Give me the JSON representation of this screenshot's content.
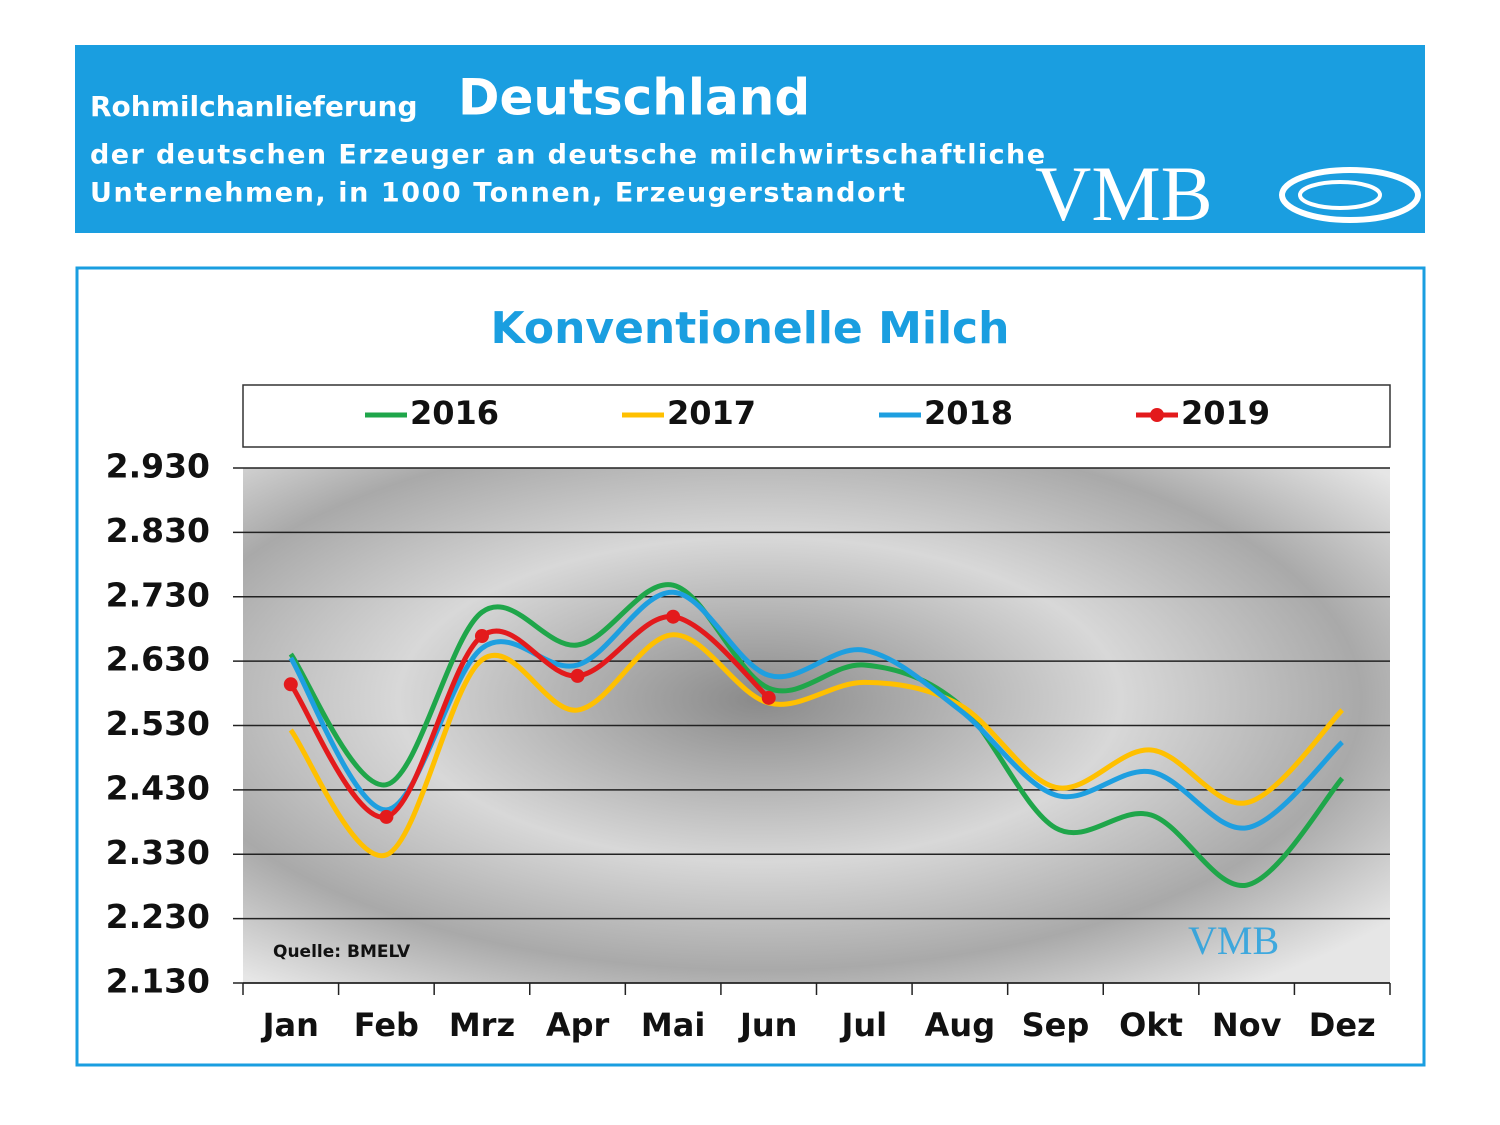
{
  "header": {
    "title_prefix": "Rohmilchanlieferung",
    "title": "Deutschland",
    "subtitle_lines": [
      "der deutschen Erzeuger an deutsche milchwirtschaftliche",
      "Unternehmen, in 1000 Tonnen, Erzeugerstandort"
    ],
    "logo": "VMB"
  },
  "chart_data": {
    "type": "line",
    "title": "Konventionelle Milch",
    "annotation": "Quelle: BMELV",
    "watermark": "VMB",
    "categories": [
      "Jan",
      "Feb",
      "Mrz",
      "Apr",
      "Mai",
      "Jun",
      "Jul",
      "Aug",
      "Sep",
      "Okt",
      "Nov",
      "Dez"
    ],
    "series": [
      {
        "name": "2016",
        "color": "#1fa64a",
        "values": [
          2641,
          2438,
          2706,
          2655,
          2748,
          2588,
          2624,
          2562,
          2371,
          2391,
          2282,
          2448
        ]
      },
      {
        "name": "2017",
        "color": "#ffc000",
        "values": [
          2523,
          2329,
          2632,
          2554,
          2671,
          2565,
          2597,
          2562,
          2434,
          2492,
          2410,
          2554
        ]
      },
      {
        "name": "2018",
        "color": "#1e9fe0",
        "values": [
          2635,
          2399,
          2650,
          2624,
          2737,
          2608,
          2647,
          2554,
          2422,
          2458,
          2371,
          2504
        ]
      },
      {
        "name": "2019",
        "color": "#e31a1c",
        "markers": true,
        "values": [
          2594,
          2388,
          2669,
          2607,
          2699,
          2573,
          null,
          null,
          null,
          null,
          null,
          null
        ]
      }
    ],
    "ylim": [
      2130,
      2930
    ],
    "yticks": [
      {
        "value": 2130,
        "label": "2.130"
      },
      {
        "value": 2230,
        "label": "2.230"
      },
      {
        "value": 2330,
        "label": "2.330"
      },
      {
        "value": 2430,
        "label": "2.430"
      },
      {
        "value": 2530,
        "label": "2.530"
      },
      {
        "value": 2630,
        "label": "2.630"
      },
      {
        "value": 2730,
        "label": "2.730"
      },
      {
        "value": 2830,
        "label": "2.830"
      },
      {
        "value": 2930,
        "label": "2.930"
      }
    ],
    "grid": true,
    "smooth": true,
    "legend": "top"
  }
}
